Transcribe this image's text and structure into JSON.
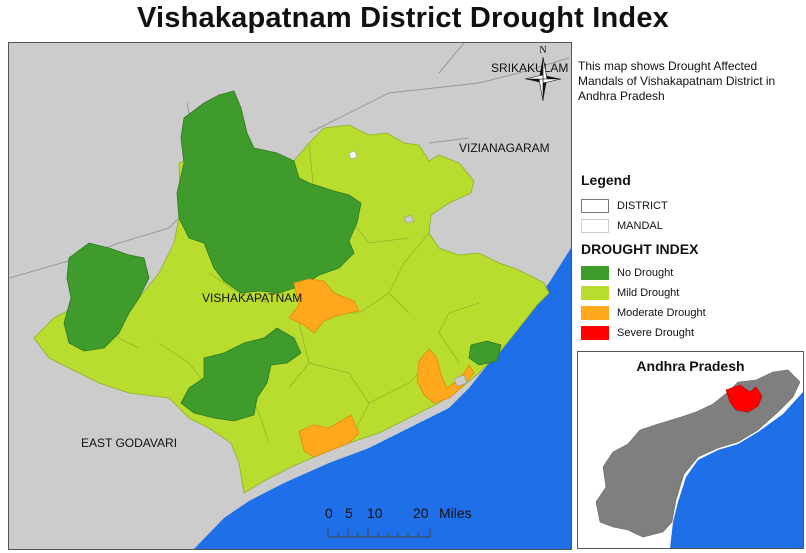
{
  "title": "Vishakapatnam District Drought Index",
  "description": "This map shows Drought Affected Mandals of Vishakapatnam District in Andhra Pradesh",
  "map_labels": {
    "srikakulam": "SRIKAKULAM",
    "vizianagaram": "VIZIANAGARAM",
    "vishakapatnam": "VISHAKAPATNAM",
    "east_godavari": "EAST GODAVARI"
  },
  "north_arrow": {
    "label": "N",
    "icon": "north-arrow-icon"
  },
  "scale_bar": {
    "ticks": [
      "0",
      "5",
      "10",
      "20"
    ],
    "unit": "Miles"
  },
  "legend": {
    "title": "Legend",
    "layers": [
      {
        "label": "DISTRICT",
        "fill": "#ffffff",
        "stroke": "#777777"
      },
      {
        "label": "MANDAL",
        "fill": "#ffffff",
        "stroke": "#cccccc"
      }
    ],
    "drought_index_title": "DROUGHT INDEX",
    "classes": [
      {
        "label": "No Drought",
        "color": "#3f9b2c"
      },
      {
        "label": "Mild Drought",
        "color": "#b9dd2f"
      },
      {
        "label": "Moderate Drought",
        "color": "#ffa81c"
      },
      {
        "label": "Severe Drought",
        "color": "#ff0000"
      }
    ]
  },
  "inset": {
    "title": "Andhra Pradesh",
    "state_color": "#7f7f7f",
    "highlight_color": "#ff0000",
    "sea_color": "#1f6fe8"
  },
  "colors": {
    "sea": "#1f6fe8",
    "neighbour_land": "#cccccc",
    "no_drought": "#3f9b2c",
    "mild_drought": "#b9dd2f",
    "moderate_drought": "#ffa81c"
  }
}
